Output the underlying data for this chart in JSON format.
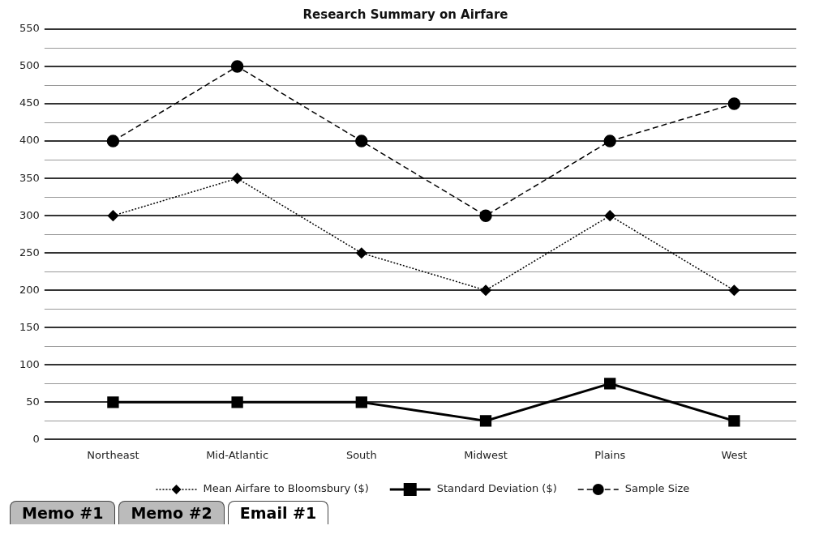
{
  "chart_data": {
    "type": "line",
    "title": "Research Summary on Airfare",
    "categories": [
      "Northeast",
      "Mid-Atlantic",
      "South",
      "Midwest",
      "Plains",
      "West"
    ],
    "series": [
      {
        "name": "Mean Airfare to Bloomsbury ($)",
        "color": "#000000",
        "values": [
          300,
          350,
          250,
          200,
          300,
          200
        ],
        "marker": "diamond",
        "line_style": "dotted"
      },
      {
        "name": "Standard Deviation ($)",
        "color": "#000000",
        "values": [
          50,
          50,
          50,
          25,
          75,
          25
        ],
        "marker": "square",
        "line_style": "solid"
      },
      {
        "name": "Sample Size",
        "color": "#000000",
        "values": [
          400,
          500,
          400,
          300,
          400,
          450
        ],
        "marker": "circle",
        "line_style": "dashed"
      }
    ],
    "ylim": [
      0,
      550
    ],
    "yticks": [
      0,
      {
        "value": 25,
        "label": null
      },
      50,
      {
        "value": 75,
        "label": null
      },
      100,
      {
        "value": 125,
        "label": null
      },
      150,
      {
        "value": 175,
        "label": null
      },
      200,
      {
        "value": 225,
        "label": null
      },
      250,
      {
        "value": 275,
        "label": null
      },
      300,
      {
        "value": 325,
        "label": null
      },
      350,
      {
        "value": 375,
        "label": null
      },
      400,
      {
        "value": 425,
        "label": null
      },
      450,
      {
        "value": 475,
        "label": null
      },
      500,
      {
        "value": 525,
        "label": null
      },
      550
    ],
    "grid": "y",
    "legend": "bottom",
    "annotations": [
      "Memo #1",
      "Memo #2",
      "Email #1"
    ]
  }
}
